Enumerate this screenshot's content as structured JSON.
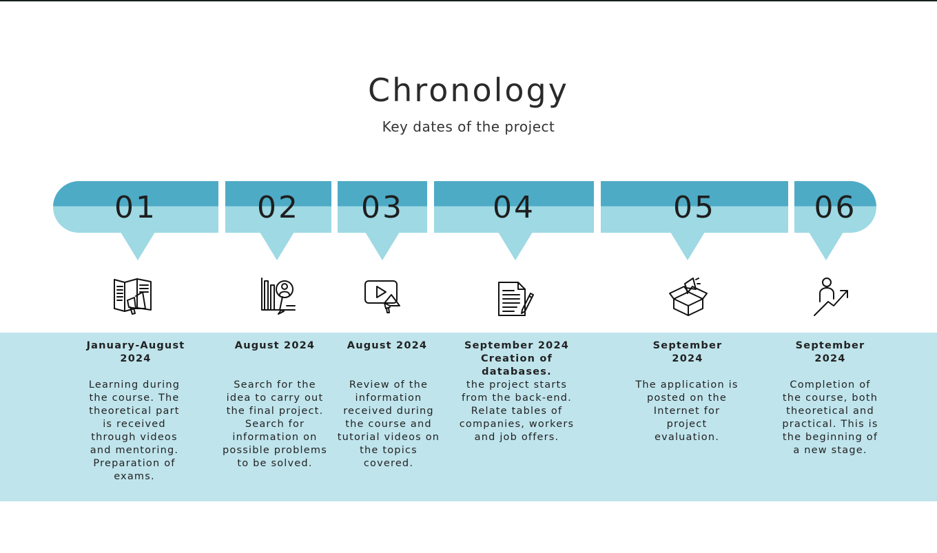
{
  "header": {
    "title": "Chronology",
    "subtitle": "Key dates of the project"
  },
  "steps": [
    {
      "number": "01",
      "icon": "brochure-megaphone-icon",
      "date": "January-August 2024",
      "description": "Learning during the course. The theoretical part is received through videos and mentoring. Preparation of exams."
    },
    {
      "number": "02",
      "icon": "search-person-chart-icon",
      "date": "August 2024",
      "description": "Search for the idea to carry out the final project. Search for information on possible problems to be solved."
    },
    {
      "number": "03",
      "icon": "video-megaphone-icon",
      "date": "August 2024",
      "description": "Review of the information received during the course and tutorial videos on the topics covered."
    },
    {
      "number": "04",
      "icon": "document-pencil-icon",
      "date": "September 2024 Creation of databases.",
      "description": "the project starts from the back-end. Relate tables of companies, workers and job offers."
    },
    {
      "number": "05",
      "icon": "box-megaphone-icon",
      "date": "September 2024",
      "description": "The application is posted on the Internet for project evaluation."
    },
    {
      "number": "06",
      "icon": "person-growth-arrow-icon",
      "date": "September 2024",
      "description": "Completion of the course, both theoretical and practical. This is the beginning of a new stage."
    }
  ]
}
